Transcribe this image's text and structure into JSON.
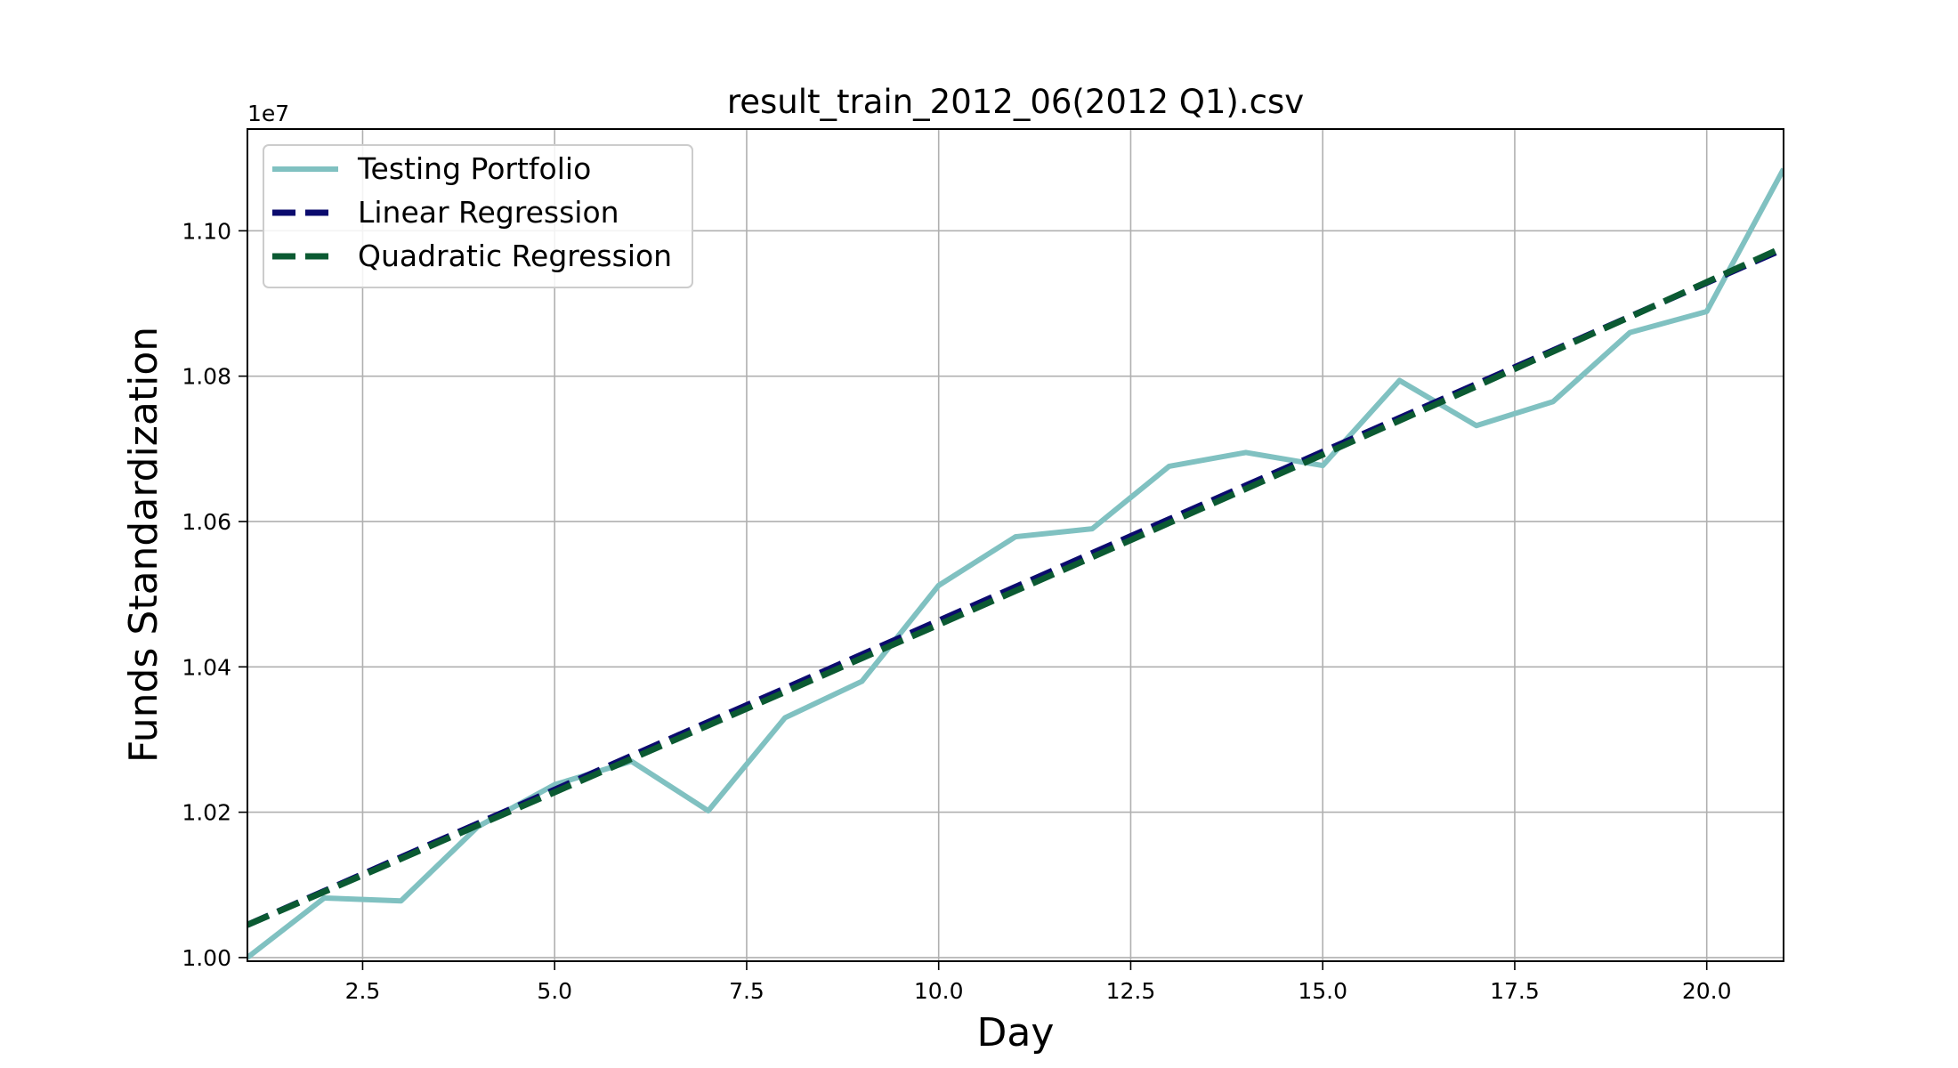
{
  "chart_data": {
    "type": "line",
    "title": "result_train_2012_06(2012 Q1).csv",
    "xlabel": "Day",
    "ylabel": "Funds Standardization",
    "y_offset_label": "1e7",
    "xlim": [
      1,
      21
    ],
    "ylim": [
      9995000,
      11140000
    ],
    "grid": true,
    "legend_position": "top-left",
    "x_ticks": [
      2.5,
      5.0,
      7.5,
      10.0,
      12.5,
      15.0,
      17.5,
      20.0
    ],
    "x_tick_labels": [
      "2.5",
      "5.0",
      "7.5",
      "10.0",
      "12.5",
      "15.0",
      "17.5",
      "20.0"
    ],
    "y_ticks": [
      10000000,
      10200000,
      10400000,
      10600000,
      10800000,
      11000000
    ],
    "y_tick_labels": [
      "1.00",
      "1.02",
      "1.04",
      "1.06",
      "1.08",
      "1.10"
    ],
    "x": [
      1,
      2,
      3,
      4,
      5,
      6,
      7,
      8,
      9,
      10,
      11,
      12,
      13,
      14,
      15,
      16,
      17,
      18,
      19,
      20,
      21
    ],
    "series": [
      {
        "name": "Testing Portfolio",
        "color": "#80c1c1",
        "style": "solid",
        "values": [
          10000000,
          10082000,
          10078000,
          10180000,
          10238000,
          10270000,
          10202000,
          10330000,
          10380000,
          10512000,
          10579000,
          10590000,
          10676000,
          10695000,
          10677000,
          10794000,
          10732000,
          10765000,
          10860000,
          10889000,
          11085000
        ]
      },
      {
        "name": "Linear Regression",
        "color": "#0b0b6e",
        "style": "dashed",
        "values": [
          10045000,
          10091500,
          10138000,
          10184500,
          10231000,
          10277500,
          10324000,
          10370500,
          10417000,
          10463500,
          10510000,
          10556500,
          10603000,
          10649500,
          10696000,
          10742500,
          10789000,
          10835500,
          10882000,
          10928500,
          10975000
        ]
      },
      {
        "name": "Quadratic Regression",
        "color": "#0b5a32",
        "style": "dashed",
        "values": [
          10045000,
          10090500,
          10136000,
          10182000,
          10227500,
          10273500,
          10319500,
          10365500,
          10412000,
          10458000,
          10504500,
          10551000,
          10598000,
          10645000,
          10692000,
          10739000,
          10786000,
          10834000,
          10881500,
          10929500,
          10977500
        ]
      }
    ]
  }
}
